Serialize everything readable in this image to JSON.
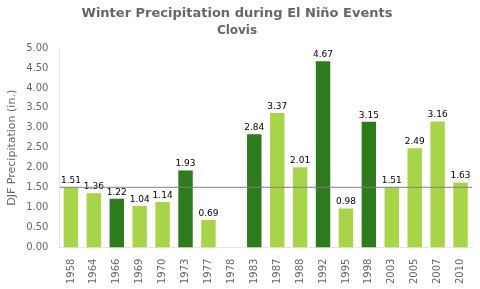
{
  "chart_data": {
    "type": "bar",
    "title": "Winter Precipitation during El Niño Events",
    "subtitle": "Clovis",
    "y_label": "DJF Precipitation (in.)",
    "categories": [
      "1958",
      "1964",
      "1966",
      "1969",
      "1970",
      "1973",
      "1977",
      "1978",
      "1983",
      "1987",
      "1988",
      "1992",
      "1995",
      "1998",
      "2003",
      "2005",
      "2007",
      "2010"
    ],
    "values": [
      1.51,
      1.36,
      1.22,
      1.04,
      1.14,
      1.93,
      0.69,
      0.0,
      2.84,
      3.37,
      2.01,
      4.67,
      0.98,
      3.15,
      1.51,
      2.49,
      3.16,
      1.63
    ],
    "value_labels": [
      "1.51",
      "1.36",
      "1.22",
      "1.04",
      "1.14",
      "1.93",
      "0.69",
      null,
      "2.84",
      "3.37",
      "2.01",
      "4.67",
      "0.98",
      "3.15",
      "1.51",
      "2.49",
      "3.16",
      "1.63"
    ],
    "colors": [
      "#a8d44a",
      "#a8d44a",
      "#2e7b1e",
      "#a8d44a",
      "#a8d44a",
      "#2e7b1e",
      "#a8d44a",
      "#a8d44a",
      "#2e7b1e",
      "#a8d44a",
      "#a8d44a",
      "#2e7b1e",
      "#a8d44a",
      "#2e7b1e",
      "#a8d44a",
      "#a8d44a",
      "#a8d44a",
      "#a8d44a"
    ],
    "reference_lines": [
      {
        "y": 1.51,
        "color": "#808080"
      }
    ],
    "ylim": [
      0.0,
      5.0
    ],
    "yticks": [
      {
        "value": 0.0,
        "label": "0.00"
      },
      {
        "value": 0.5,
        "label": "0.50"
      },
      {
        "value": 1.0,
        "label": "1.00"
      },
      {
        "value": 1.5,
        "label": "1.50"
      },
      {
        "value": 2.0,
        "label": "2.00"
      },
      {
        "value": 2.5,
        "label": "2.50"
      },
      {
        "value": 3.0,
        "label": "3.00"
      },
      {
        "value": 3.5,
        "label": "3.50"
      },
      {
        "value": 4.0,
        "label": "4.00"
      },
      {
        "value": 4.5,
        "label": "4.50"
      },
      {
        "value": 5.0,
        "label": "5.00"
      }
    ],
    "grid": false,
    "data_labels": true
  }
}
